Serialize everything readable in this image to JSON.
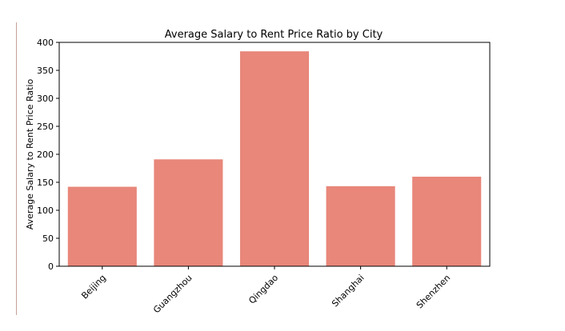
{
  "chart_data": {
    "type": "bar",
    "title": "Average Salary to Rent Price Ratio by City",
    "xlabel": "",
    "ylabel": "Average Salary to Rent Price Ratio",
    "categories": [
      "Beijing",
      "Guangzhou",
      "Qingdao",
      "Shanghai",
      "Shenzhen"
    ],
    "values": [
      142,
      191,
      384,
      143,
      160
    ],
    "ylim": [
      0,
      400
    ],
    "yticks": [
      0,
      50,
      100,
      150,
      200,
      250,
      300,
      350,
      400
    ],
    "grid": false,
    "legend": "none",
    "bar_color": "#e8877a"
  }
}
